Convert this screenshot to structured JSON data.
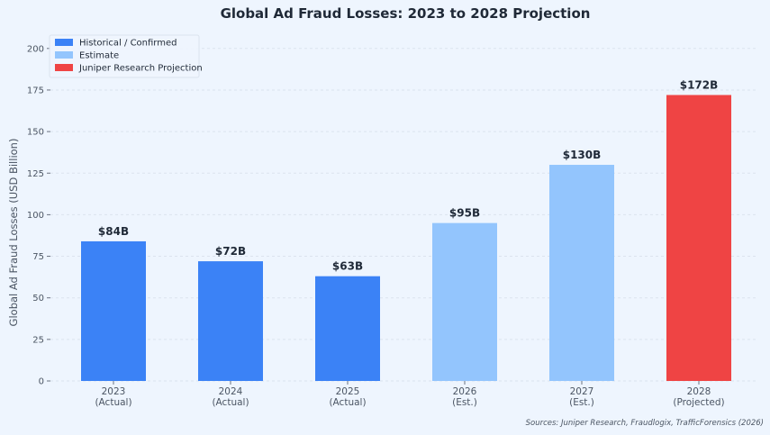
{
  "chart_data": {
    "type": "bar",
    "title": "Global Ad Fraud Losses: 2023 to 2028 Projection",
    "ylabel": "Global Ad Fraud Losses (USD Billion)",
    "xlabel": "",
    "ylim": [
      0,
      210
    ],
    "yticks": [
      0,
      25,
      50,
      75,
      100,
      125,
      150,
      175,
      200
    ],
    "grid": "horizontal",
    "legend_position": "top-left",
    "categories": [
      {
        "year": "2023",
        "note": "(Actual)"
      },
      {
        "year": "2024",
        "note": "(Actual)"
      },
      {
        "year": "2025",
        "note": "(Actual)"
      },
      {
        "year": "2026",
        "note": "(Est.)"
      },
      {
        "year": "2027",
        "note": "(Est.)"
      },
      {
        "year": "2028",
        "note": "(Projected)"
      }
    ],
    "values": [
      84,
      72,
      63,
      95,
      130,
      172
    ],
    "data_labels": [
      "$84B",
      "$72B",
      "$63B",
      "$95B",
      "$130B",
      "$172B"
    ],
    "bar_groups": [
      "historical",
      "historical",
      "historical",
      "estimate",
      "estimate",
      "projection"
    ],
    "legend": [
      {
        "key": "historical",
        "label": "Historical / Confirmed",
        "color": "#3b82f6"
      },
      {
        "key": "estimate",
        "label": "Estimate",
        "color": "#93c5fd"
      },
      {
        "key": "projection",
        "label": "Juniper Research Projection",
        "color": "#ef4444"
      }
    ],
    "source_note": "Sources: Juniper Research, Fraudlogix, TrafficForensics (2026)"
  }
}
